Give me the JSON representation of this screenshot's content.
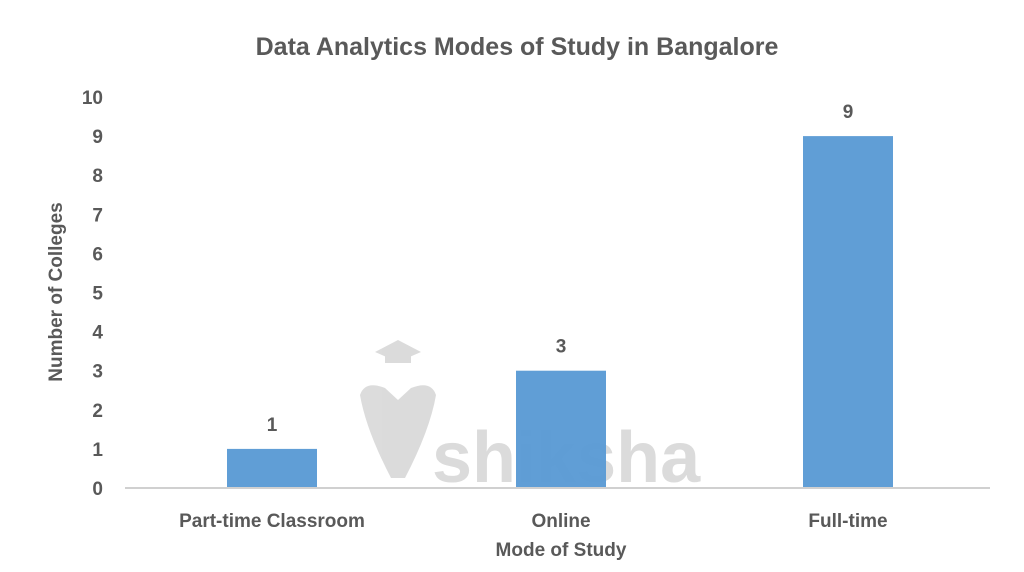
{
  "chart_data": {
    "type": "bar",
    "title": "Data Analytics Modes of Study in Bangalore",
    "xlabel": "Mode of Study",
    "ylabel": "Number of Colleges",
    "categories": [
      "Part-time Classroom",
      "Online",
      "Full-time"
    ],
    "values": [
      1,
      3,
      9
    ],
    "data_labels": [
      "1",
      "3",
      "9"
    ],
    "ylim": [
      0,
      10
    ],
    "yticks": [
      0,
      1,
      2,
      3,
      4,
      5,
      6,
      7,
      8,
      9,
      10
    ],
    "grid": false,
    "legend": "none",
    "bar_color": "#5B9BD5",
    "watermark": "shiksha"
  }
}
